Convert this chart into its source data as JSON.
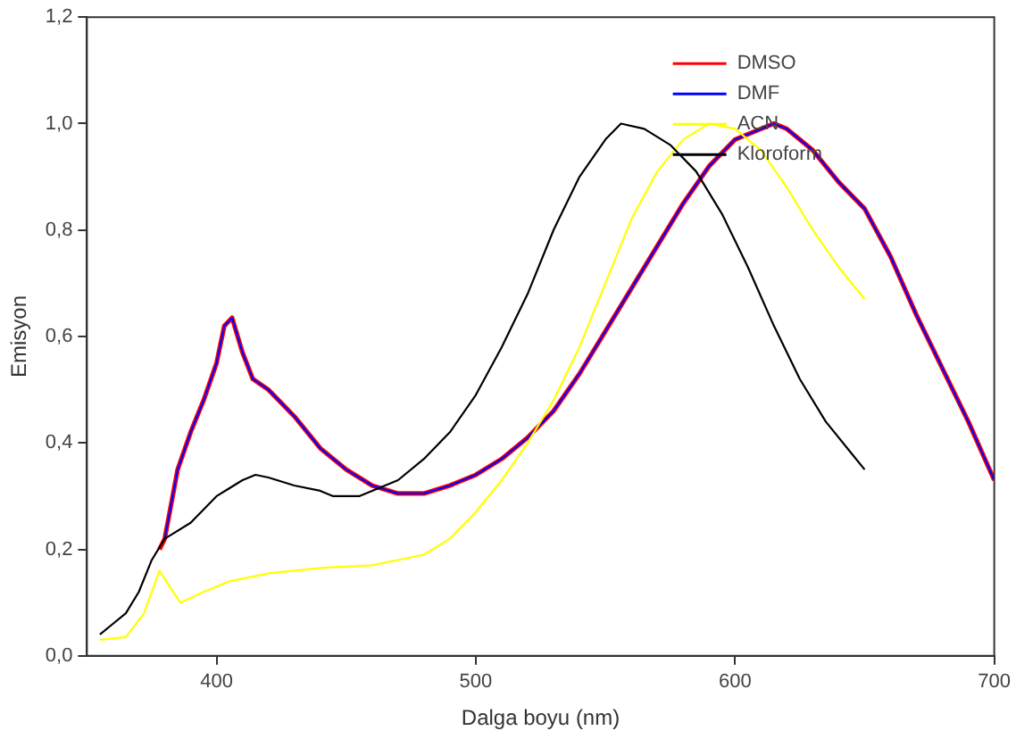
{
  "chart_data": {
    "type": "line",
    "xlabel": "Dalga boyu (nm)",
    "ylabel": "Emisyon",
    "xlim": [
      350,
      700
    ],
    "xticks": [
      400,
      500,
      600,
      700
    ],
    "ylim": [
      0,
      1.2
    ],
    "yticks": [
      {
        "value": 0,
        "label": "0,0"
      },
      {
        "value": 0.2,
        "label": "0,2"
      },
      {
        "value": 0.4,
        "label": "0,4"
      },
      {
        "value": 0.6,
        "label": "0,6"
      },
      {
        "value": 0.8,
        "label": "0,8"
      },
      {
        "value": 1,
        "label": "1,0"
      },
      {
        "value": 1.2,
        "label": "1,2"
      }
    ],
    "grid": false,
    "legend": "top right",
    "marker": "none",
    "line_style": "solid",
    "series": [
      {
        "name": "DMSO",
        "color": "#ff0000",
        "x": [
          378,
          380,
          385,
          390,
          395,
          400,
          403,
          406,
          410,
          414,
          420,
          430,
          440,
          450,
          460,
          470,
          480,
          490,
          500,
          510,
          520,
          530,
          540,
          550,
          560,
          570,
          580,
          590,
          600,
          610,
          615,
          620,
          630,
          640,
          650,
          660,
          670,
          680,
          690,
          700
        ],
        "values": [
          0.2,
          0.22,
          0.35,
          0.42,
          0.48,
          0.55,
          0.62,
          0.635,
          0.57,
          0.52,
          0.5,
          0.45,
          0.39,
          0.35,
          0.32,
          0.305,
          0.305,
          0.32,
          0.34,
          0.37,
          0.41,
          0.46,
          0.53,
          0.61,
          0.69,
          0.77,
          0.85,
          0.92,
          0.97,
          0.99,
          1.0,
          0.99,
          0.95,
          0.89,
          0.84,
          0.75,
          0.64,
          0.54,
          0.44,
          0.33
        ]
      },
      {
        "name": "DMF",
        "color": "#0000ff",
        "x": [
          380,
          385,
          390,
          395,
          400,
          403,
          406,
          410,
          414,
          420,
          430,
          440,
          450,
          460,
          470,
          480,
          490,
          500,
          510,
          520,
          530,
          540,
          550,
          560,
          570,
          580,
          590,
          600,
          610,
          615,
          620,
          630,
          640,
          650,
          660,
          670,
          680,
          690,
          700
        ],
        "values": [
          0.22,
          0.35,
          0.42,
          0.48,
          0.55,
          0.62,
          0.635,
          0.57,
          0.52,
          0.5,
          0.45,
          0.39,
          0.35,
          0.32,
          0.305,
          0.305,
          0.32,
          0.34,
          0.37,
          0.41,
          0.46,
          0.53,
          0.61,
          0.69,
          0.77,
          0.85,
          0.92,
          0.97,
          0.99,
          1.0,
          0.99,
          0.95,
          0.89,
          0.84,
          0.75,
          0.64,
          0.54,
          0.44,
          0.33
        ]
      },
      {
        "name": "ACN",
        "color": "#ffff00",
        "x": [
          355,
          365,
          372,
          378,
          382,
          386,
          395,
          405,
          420,
          440,
          460,
          480,
          490,
          500,
          510,
          520,
          530,
          540,
          550,
          560,
          570,
          580,
          590,
          600,
          610,
          620,
          630,
          640,
          650
        ],
        "values": [
          0.03,
          0.035,
          0.08,
          0.16,
          0.13,
          0.1,
          0.12,
          0.14,
          0.155,
          0.165,
          0.17,
          0.19,
          0.22,
          0.27,
          0.33,
          0.4,
          0.48,
          0.58,
          0.7,
          0.82,
          0.91,
          0.97,
          1.0,
          0.99,
          0.95,
          0.88,
          0.8,
          0.73,
          0.67
        ]
      },
      {
        "name": "Kloroform",
        "color": "#000000",
        "x": [
          355,
          360,
          365,
          370,
          375,
          380,
          390,
          400,
          410,
          415,
          420,
          430,
          440,
          445,
          455,
          460,
          470,
          480,
          490,
          500,
          510,
          520,
          530,
          540,
          550,
          556,
          565,
          575,
          585,
          595,
          605,
          615,
          625,
          635,
          645,
          650
        ],
        "values": [
          0.04,
          0.06,
          0.08,
          0.12,
          0.18,
          0.22,
          0.25,
          0.3,
          0.33,
          0.34,
          0.335,
          0.32,
          0.31,
          0.3,
          0.3,
          0.31,
          0.33,
          0.37,
          0.42,
          0.49,
          0.58,
          0.68,
          0.8,
          0.9,
          0.97,
          1.0,
          0.99,
          0.96,
          0.91,
          0.83,
          0.73,
          0.62,
          0.52,
          0.44,
          0.38,
          0.35
        ]
      }
    ]
  }
}
